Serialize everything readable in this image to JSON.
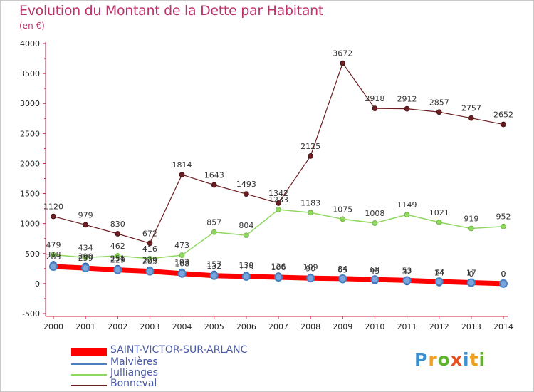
{
  "title": "Evolution du Montant de la Dette par Habitant",
  "unit": "(en €)",
  "logo": {
    "text": "Proxiti"
  },
  "chart_data": {
    "type": "line",
    "x": [
      "2000",
      "2001",
      "2002",
      "2003",
      "2004",
      "2005",
      "2006",
      "2007",
      "2008",
      "2009",
      "2010",
      "2011",
      "2012",
      "2013",
      "2014"
    ],
    "ylim": [
      -500,
      4000
    ],
    "yticks": [
      "-500",
      "0",
      "500",
      "1000",
      "1500",
      "2000",
      "2500",
      "3000",
      "3500",
      "4000"
    ],
    "grid": false,
    "legend_position": "bottom-left",
    "series": [
      {
        "name": "SAINT-VICTOR-SUR-ARLANC",
        "color": "#ff0000",
        "values": [
          283,
          259,
          229,
          205,
          168,
          132,
          119,
          106,
          90,
          84,
          68,
          53,
          33,
          17,
          0
        ],
        "labels": [
          "283",
          "259",
          "229",
          "205",
          "168",
          "132",
          "119",
          "106",
          "90",
          "84",
          "68",
          "53",
          "33",
          "17",
          "0"
        ]
      },
      {
        "name": "Malvières",
        "color": "#4a7fc0",
        "values": [
          318,
          290,
          251,
          229,
          193,
          157,
          139,
          126,
          109,
          65,
          45,
          32,
          14,
          0,
          0
        ],
        "labels": [
          "318",
          "290",
          "251",
          "229",
          "193",
          "157",
          "139",
          "126",
          "109",
          "65",
          "45",
          "32",
          "14",
          "0",
          "0"
        ]
      },
      {
        "name": "Jullianges",
        "color": "#8fd860",
        "values": [
          479,
          434,
          462,
          416,
          473,
          857,
          804,
          1233,
          1183,
          1075,
          1008,
          1149,
          1021,
          919,
          952
        ],
        "labels": [
          "479",
          "434",
          "462",
          "416",
          "473",
          "857",
          "804",
          "1233",
          "1183",
          "1075",
          "1008",
          "1149",
          "1021",
          "919",
          "952"
        ]
      },
      {
        "name": "Bonneval",
        "color": "#6b1e22",
        "values": [
          1120,
          979,
          830,
          672,
          1814,
          1643,
          1493,
          1342,
          2125,
          3672,
          2918,
          2912,
          2857,
          2757,
          2652
        ],
        "labels": [
          "1120",
          "979",
          "830",
          "672",
          "1814",
          "1643",
          "1493",
          "1342",
          "2125",
          "3672",
          "2918",
          "2912",
          "2857",
          "2757",
          "2652"
        ]
      }
    ]
  }
}
